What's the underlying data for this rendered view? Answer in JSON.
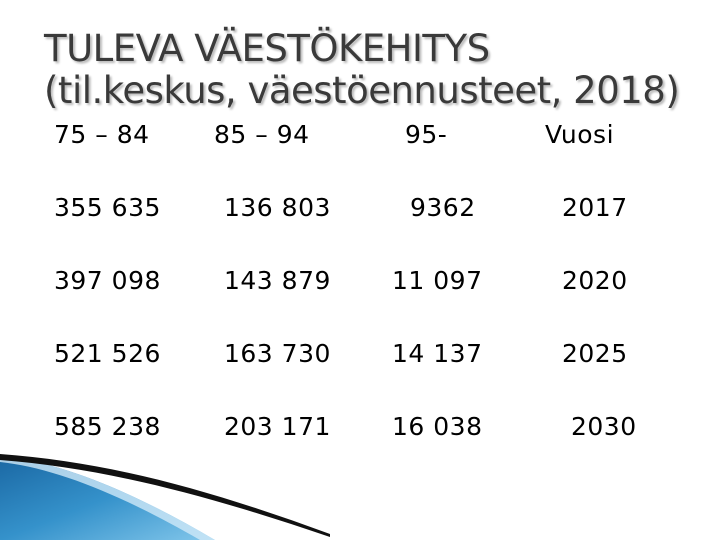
{
  "slide": {
    "title_line1": "TULEVA VÄESTÖKEHITYS",
    "title_line2": "(til.keskus, väestöennusteet, 2018)"
  },
  "table": {
    "headers": [
      "75 – 84",
      "85 – 94",
      "95-",
      "Vuosi"
    ],
    "rows": [
      [
        "355 635",
        "136 803",
        "9362",
        "2017"
      ],
      [
        "397 098",
        "143 879",
        "11 097",
        "2020"
      ],
      [
        "521 526",
        "163 730",
        "14 137",
        "2025"
      ],
      [
        "585 238",
        "203 171",
        "16 038",
        "2030"
      ]
    ]
  },
  "colors": {
    "title": "#3a3a3a",
    "decoration_blue": "#2a8cc8",
    "decoration_dark": "#111111"
  }
}
